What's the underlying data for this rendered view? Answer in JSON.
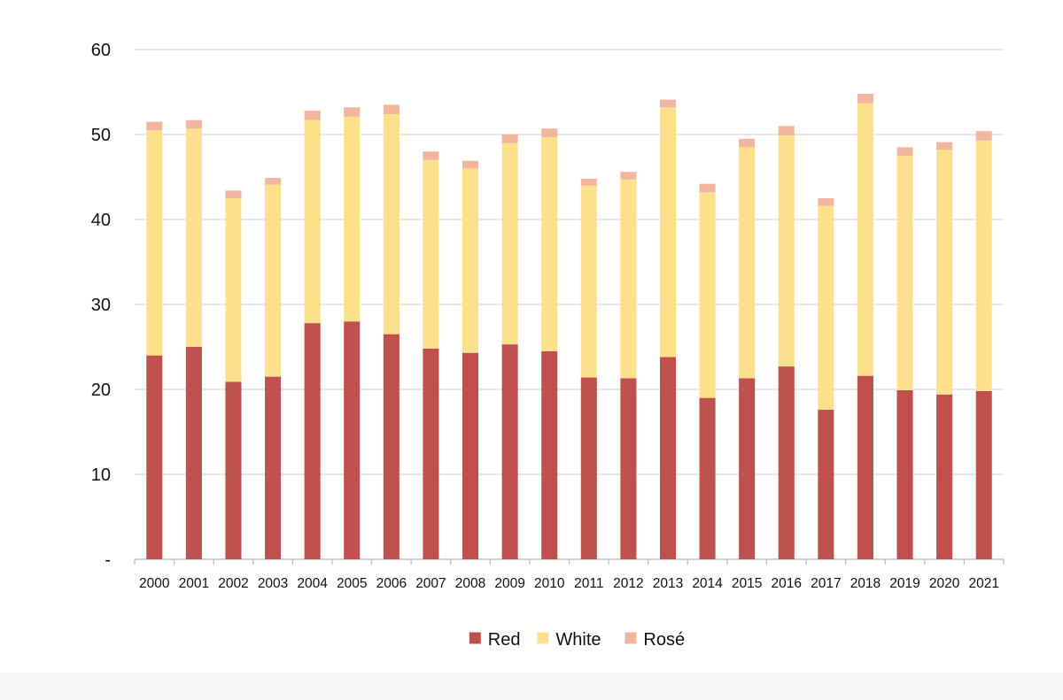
{
  "chart_data": {
    "type": "bar",
    "stacked": true,
    "title": "",
    "xlabel": "",
    "ylabel": "",
    "ylim": [
      0,
      60
    ],
    "yticks": [
      0,
      10,
      20,
      30,
      40,
      50,
      60
    ],
    "ytick_labels": [
      "-",
      "10",
      "20",
      "30",
      "40",
      "50",
      "60"
    ],
    "grid": true,
    "legend_position": "bottom-center",
    "categories": [
      "2000",
      "2001",
      "2002",
      "2003",
      "2004",
      "2005",
      "2006",
      "2007",
      "2008",
      "2009",
      "2010",
      "2011",
      "2012",
      "2013",
      "2014",
      "2015",
      "2016",
      "2017",
      "2018",
      "2019",
      "2020",
      "2021"
    ],
    "series": [
      {
        "name": "Red",
        "color": "#c0504d",
        "values": [
          24.0,
          25.0,
          20.9,
          21.5,
          27.8,
          28.0,
          26.5,
          24.8,
          24.3,
          25.3,
          24.5,
          21.4,
          21.3,
          23.8,
          19.0,
          21.3,
          22.7,
          17.6,
          21.6,
          19.9,
          19.4,
          19.8
        ]
      },
      {
        "name": "White",
        "color": "#fde08c",
        "values": [
          26.5,
          25.7,
          21.6,
          22.6,
          23.9,
          24.1,
          25.9,
          22.2,
          21.7,
          23.7,
          25.2,
          22.6,
          23.4,
          29.4,
          24.2,
          27.2,
          27.2,
          24.0,
          32.1,
          27.6,
          28.8,
          29.5
        ]
      },
      {
        "name": "Rosé",
        "color": "#f2b59e",
        "values": [
          1.0,
          1.0,
          0.9,
          0.8,
          1.1,
          1.1,
          1.1,
          1.0,
          0.9,
          1.0,
          1.0,
          0.8,
          0.9,
          0.9,
          1.0,
          1.0,
          1.1,
          0.9,
          1.1,
          1.0,
          0.9,
          1.1
        ]
      }
    ],
    "colors": {
      "grid": "#d9d9d9",
      "axis": "#bfbfbf",
      "text": "#111111"
    }
  }
}
